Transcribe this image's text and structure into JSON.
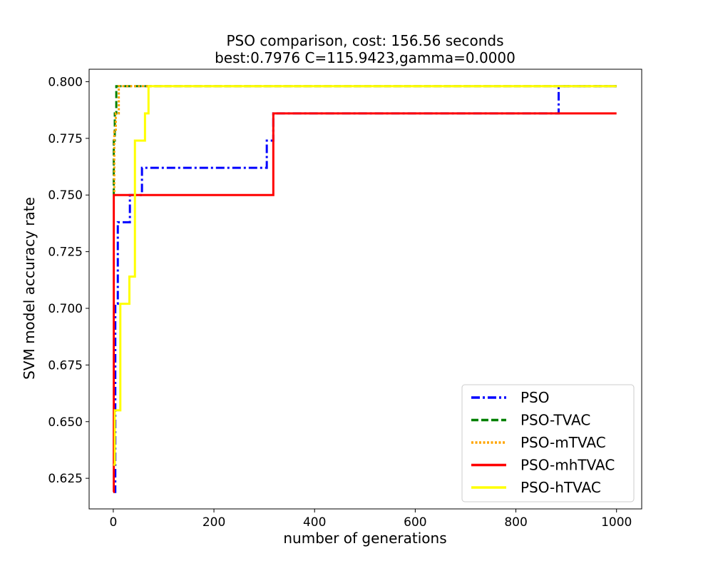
{
  "chart_data": {
    "type": "line",
    "title_lines": [
      "PSO comparison, cost: 156.56 seconds",
      "best:0.7976  C=115.9423,gamma=0.0000"
    ],
    "xlabel": "number of generations",
    "ylabel": "SVM model accuracy rate",
    "xlim": [
      -48,
      1050
    ],
    "ylim": [
      0.6115,
      0.8055
    ],
    "xticks": [
      0,
      200,
      400,
      600,
      800,
      1000
    ],
    "xtick_labels": [
      "0",
      "200",
      "400",
      "600",
      "800",
      "1000"
    ],
    "yticks": [
      0.625,
      0.65,
      0.675,
      0.7,
      0.725,
      0.75,
      0.775,
      0.8
    ],
    "ytick_labels": [
      "0.625",
      "0.650",
      "0.675",
      "0.700",
      "0.725",
      "0.750",
      "0.775",
      "0.800"
    ],
    "grid": false,
    "legend_position": "lower right",
    "series": [
      {
        "name": "PSO",
        "color": "#0000ff",
        "linestyle": "dashdot",
        "points": [
          [
            0,
            0.619
          ],
          [
            4,
            0.619
          ],
          [
            4,
            0.702
          ],
          [
            9,
            0.702
          ],
          [
            9,
            0.738
          ],
          [
            33,
            0.738
          ],
          [
            33,
            0.75
          ],
          [
            57,
            0.75
          ],
          [
            57,
            0.762
          ],
          [
            305,
            0.762
          ],
          [
            305,
            0.774
          ],
          [
            318,
            0.774
          ],
          [
            318,
            0.786
          ],
          [
            885,
            0.786
          ],
          [
            885,
            0.798
          ],
          [
            1000,
            0.798
          ]
        ]
      },
      {
        "name": "PSO-TVAC",
        "color": "#008000",
        "linestyle": "dashed",
        "points": [
          [
            0,
            0.75
          ],
          [
            1,
            0.75
          ],
          [
            1,
            0.774
          ],
          [
            3,
            0.774
          ],
          [
            3,
            0.786
          ],
          [
            6,
            0.786
          ],
          [
            6,
            0.798
          ],
          [
            1000,
            0.798
          ]
        ]
      },
      {
        "name": "PSO-mTVAC",
        "color": "#ffa500",
        "linestyle": "dotted",
        "points": [
          [
            0,
            0.75
          ],
          [
            2,
            0.75
          ],
          [
            2,
            0.778
          ],
          [
            5,
            0.778
          ],
          [
            5,
            0.786
          ],
          [
            11,
            0.786
          ],
          [
            11,
            0.798
          ],
          [
            1000,
            0.798
          ]
        ]
      },
      {
        "name": "PSO-mhTVAC",
        "color": "#ff0000",
        "linestyle": "solid",
        "points": [
          [
            0,
            0.619
          ],
          [
            1,
            0.619
          ],
          [
            1,
            0.75
          ],
          [
            318,
            0.75
          ],
          [
            318,
            0.786
          ],
          [
            1000,
            0.786
          ]
        ]
      },
      {
        "name": "PSO-hTVAC",
        "color": "#ffff00",
        "linestyle": "solid",
        "points": [
          [
            0,
            0.631
          ],
          [
            3,
            0.631
          ],
          [
            3,
            0.655
          ],
          [
            14,
            0.655
          ],
          [
            14,
            0.702
          ],
          [
            32,
            0.702
          ],
          [
            32,
            0.714
          ],
          [
            43,
            0.714
          ],
          [
            43,
            0.774
          ],
          [
            63,
            0.774
          ],
          [
            63,
            0.786
          ],
          [
            70,
            0.786
          ],
          [
            70,
            0.798
          ],
          [
            1000,
            0.798
          ]
        ]
      }
    ]
  }
}
